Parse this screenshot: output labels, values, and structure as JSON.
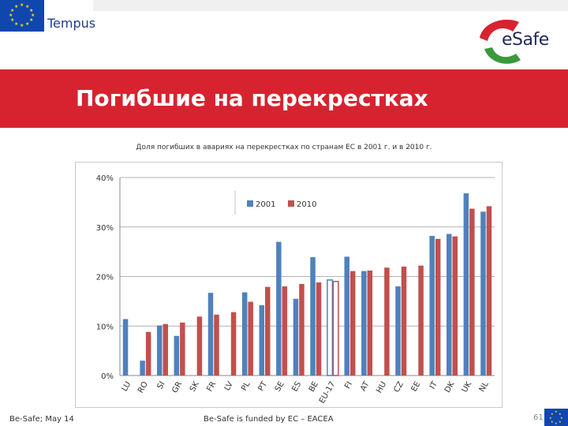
{
  "header": {
    "left_logo_text": "Tempus",
    "right_logo_text": "eSafe",
    "title": "Погибшие на перекрестках"
  },
  "chart_data": {
    "type": "bar",
    "title": "Доля погибших в авариях на перекрестках по странам ЕС в 2001 г. и в 2010 г.",
    "categories": [
      "LU",
      "RO",
      "SI",
      "GR",
      "SK",
      "FR",
      "LV",
      "PL",
      "PT",
      "SE",
      "ES",
      "BE",
      "EU-17",
      "FI",
      "AT",
      "HU",
      "CZ",
      "EE",
      "IT",
      "DK",
      "UK",
      "NL"
    ],
    "series": [
      {
        "name": "2001",
        "color": "#4f81bd",
        "values": [
          11.4,
          3.0,
          10.1,
          8.0,
          null,
          16.7,
          null,
          16.8,
          14.2,
          27.0,
          15.5,
          23.9,
          19.3,
          24.0,
          21.1,
          null,
          18.0,
          null,
          28.2,
          28.6,
          36.8,
          33.1
        ]
      },
      {
        "name": "2010",
        "color": "#c0504d",
        "values": [
          null,
          8.8,
          10.4,
          10.7,
          11.9,
          12.3,
          12.8,
          14.9,
          17.9,
          18.0,
          18.5,
          18.8,
          19.0,
          21.1,
          21.2,
          21.8,
          22.0,
          22.2,
          27.6,
          28.1,
          33.7,
          34.2
        ]
      }
    ],
    "y_tick_labels": [
      "0%",
      "10%",
      "20%",
      "30%",
      "40%"
    ],
    "ylim": [
      0,
      40
    ],
    "grid": true,
    "legend_position": "top-left",
    "highlight_category": "EU-17"
  },
  "footer": {
    "left": "Be-Safe; May 14",
    "center": "Be-Safe is funded by EC – EACEA",
    "page": "61"
  }
}
